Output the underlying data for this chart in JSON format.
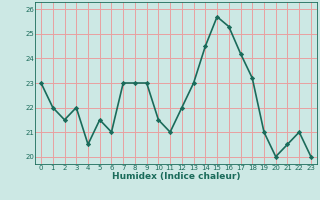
{
  "x": [
    0,
    1,
    2,
    3,
    4,
    5,
    6,
    7,
    8,
    9,
    10,
    11,
    12,
    13,
    14,
    15,
    16,
    17,
    18,
    19,
    20,
    21,
    22,
    23
  ],
  "y": [
    23.0,
    22.0,
    21.5,
    22.0,
    20.5,
    21.5,
    21.0,
    23.0,
    23.0,
    23.0,
    21.5,
    21.0,
    22.0,
    23.0,
    24.5,
    25.7,
    25.3,
    24.2,
    23.2,
    21.0,
    20.0,
    20.5,
    21.0,
    20.0
  ],
  "xlabel": "Humidex (Indice chaleur)",
  "ylabel": "",
  "xlim": [
    -0.5,
    23.5
  ],
  "ylim": [
    19.7,
    26.3
  ],
  "yticks": [
    20,
    21,
    22,
    23,
    24,
    25,
    26
  ],
  "xticks": [
    0,
    1,
    2,
    3,
    4,
    5,
    6,
    7,
    8,
    9,
    10,
    11,
    12,
    13,
    14,
    15,
    16,
    17,
    18,
    19,
    20,
    21,
    22,
    23
  ],
  "line_color": "#1a6b5a",
  "marker": "D",
  "marker_size": 2.2,
  "bg_color": "#cce8e4",
  "grid_color": "#e8a0a0",
  "tick_label_color": "#1a6b5a",
  "xlabel_color": "#1a6b5a",
  "line_width": 1.2,
  "tick_fontsize": 5.0,
  "xlabel_fontsize": 6.5
}
